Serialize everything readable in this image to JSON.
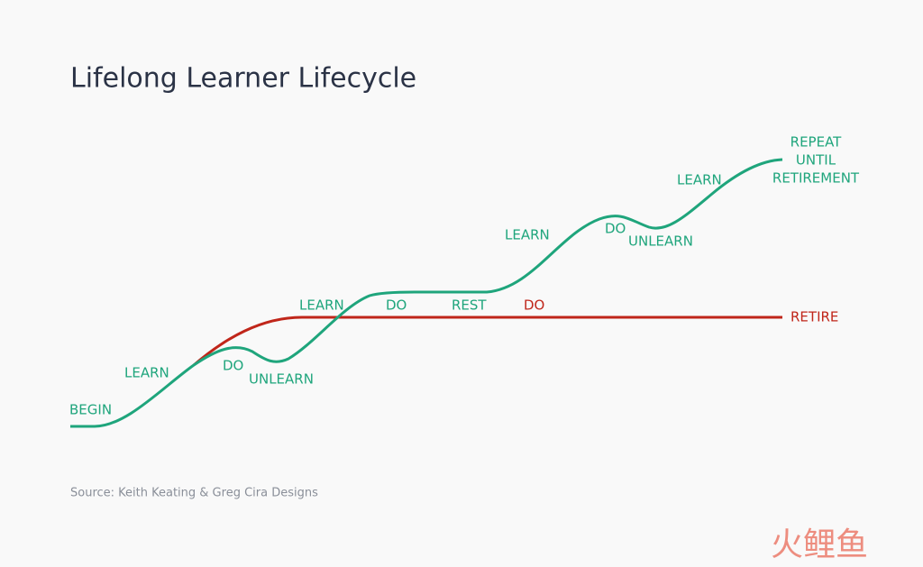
{
  "title": "Lifelong Learner Lifecycle",
  "labels": {
    "begin": "BEGIN",
    "learn_1": "LEARN",
    "do_1": "DO",
    "unlearn_1": "UNLEARN",
    "learn_2": "LEARN",
    "do_2": "DO",
    "rest": "REST",
    "do_red": "DO",
    "retire": "RETIRE",
    "learn_3": "LEARN",
    "do_3": "DO",
    "unlearn_2": "UNLEARN",
    "learn_4": "LEARN",
    "repeat": [
      "REPEAT",
      "UNTIL",
      "RETIREMENT"
    ]
  },
  "source": "Source: Keith Keating & Greg Cira Designs",
  "watermark": "火鲤鱼"
}
